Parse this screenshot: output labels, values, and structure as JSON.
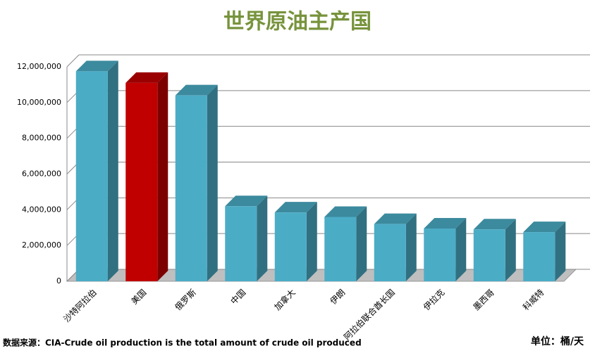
{
  "chart_data": {
    "type": "bar3d",
    "title": "世界原油主产国",
    "categories": [
      "沙特阿拉伯",
      "美国",
      "俄罗斯",
      "中国",
      "加拿大",
      "伊朗",
      "阿拉伯联合酋长国",
      "伊拉克",
      "墨西哥",
      "科威特"
    ],
    "values": [
      11750000,
      11100000,
      10400000,
      4200000,
      3850000,
      3600000,
      3200000,
      2950000,
      2900000,
      2750000
    ],
    "colors": [
      "#4bacc6",
      "#c00000",
      "#4bacc6",
      "#4bacc6",
      "#4bacc6",
      "#4bacc6",
      "#4bacc6",
      "#4bacc6",
      "#4bacc6",
      "#4bacc6"
    ],
    "ylim": [
      0,
      12000000
    ],
    "yticks": [
      0,
      {
        "value": 2000000,
        "label": "2,000,000"
      },
      {
        "value": 4000000,
        "label": "4,000,000"
      },
      {
        "value": 6000000,
        "label": "6,000,000"
      },
      {
        "value": 8000000,
        "label": "8,000,000"
      },
      {
        "value": 10000000,
        "label": "10,000,000"
      },
      {
        "value": 12000000,
        "label": "12,000,000"
      }
    ],
    "grid": true,
    "source": "数据来源：CIA-Crude oil production is the total amount of crude oil produced",
    "unit": "单位：桶/天"
  }
}
